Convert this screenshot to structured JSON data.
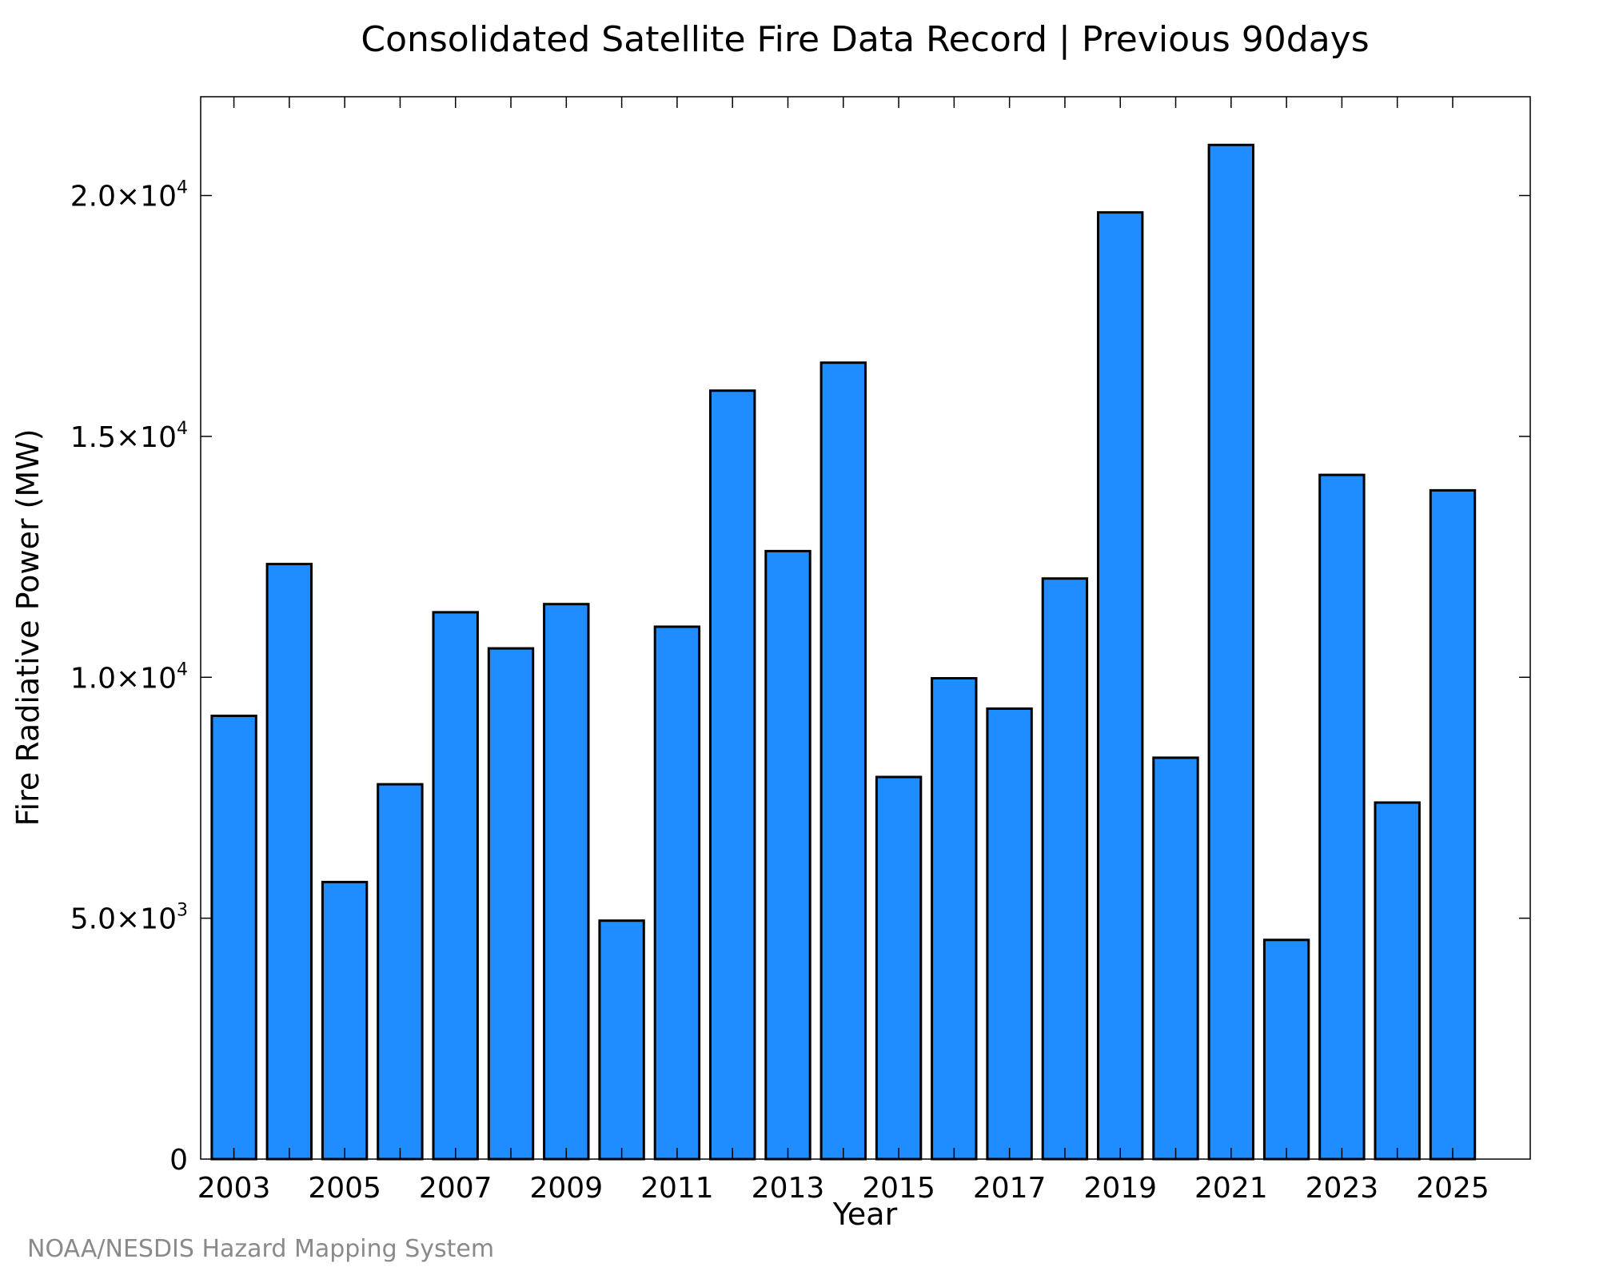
{
  "credit": "NOAA/NESDIS Hazard Mapping System",
  "colors": {
    "bar_fill": "#1f8cff",
    "bar_stroke": "#000000"
  },
  "chart_data": {
    "type": "bar",
    "title": "Consolidated Satellite Fire Data Record | Previous 90days",
    "xlabel": "Year",
    "ylabel": "Fire Radiative Power (MW)",
    "categories": [
      2003,
      2004,
      2005,
      2006,
      2007,
      2008,
      2009,
      2010,
      2011,
      2012,
      2013,
      2014,
      2015,
      2016,
      2017,
      2018,
      2019,
      2020,
      2021,
      2022,
      2023,
      2024,
      2025
    ],
    "values": [
      9200,
      12350,
      5750,
      7780,
      11350,
      10600,
      11520,
      4950,
      11050,
      15950,
      12620,
      16530,
      7930,
      9980,
      9350,
      12050,
      19650,
      8330,
      21050,
      4550,
      14200,
      7400,
      13880
    ],
    "xlim": [
      2002.4,
      2026.4
    ],
    "ylim": [
      0,
      22050
    ],
    "x_tick_labels": [
      "2003",
      "2005",
      "2007",
      "2009",
      "2011",
      "2013",
      "2015",
      "2017",
      "2019",
      "2021",
      "2023",
      "2025"
    ],
    "y_ticks": [
      {
        "value": 0,
        "mantissa": "0",
        "exponent": ""
      },
      {
        "value": 5000,
        "mantissa": "5.0×10",
        "exponent": "3"
      },
      {
        "value": 10000,
        "mantissa": "1.0×10",
        "exponent": "4"
      },
      {
        "value": 15000,
        "mantissa": "1.5×10",
        "exponent": "4"
      },
      {
        "value": 20000,
        "mantissa": "2.0×10",
        "exponent": "4"
      }
    ],
    "grid": false,
    "legend": "none"
  }
}
